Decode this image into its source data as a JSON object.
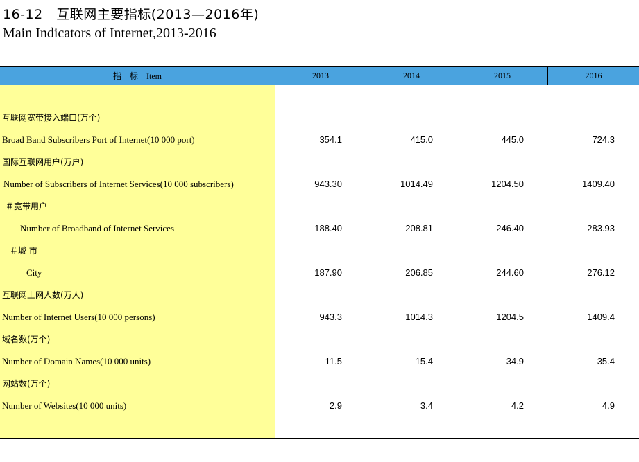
{
  "title_cn": "16-12　互联网主要指标(2013—2016年)",
  "title_en": "Main Indicators of Internet,2013-2016",
  "header": {
    "item": "指　标　Item",
    "years": [
      "2013",
      "2014",
      "2015",
      "2016"
    ]
  },
  "rows": [
    {
      "label": "互联网宽带接入端口(万个)",
      "values": [
        "",
        "",
        "",
        ""
      ]
    },
    {
      "label": "Broad Band Subscribers Port of Internet(10 000 port)",
      "values": [
        "354.1",
        "415.0",
        "445.0",
        "724.3"
      ]
    },
    {
      "label": "国际互联网用户(万户)",
      "values": [
        "",
        "",
        "",
        ""
      ]
    },
    {
      "label": "Number of Subscribers of Internet Services(10 000 subscribers)",
      "values": [
        "943.30",
        "1014.49",
        "1204.50",
        "1409.40"
      ]
    },
    {
      "label": "＃宽带用户",
      "values": [
        "",
        "",
        "",
        ""
      ]
    },
    {
      "label": "Number of Broadband of Internet Services",
      "values": [
        "188.40",
        "208.81",
        "246.40",
        "283.93"
      ]
    },
    {
      "label": "＃城 市",
      "values": [
        "",
        "",
        "",
        ""
      ]
    },
    {
      "label": "City",
      "values": [
        "187.90",
        "206.85",
        "244.60",
        "276.12"
      ]
    },
    {
      "label": "互联网上网人数(万人)",
      "values": [
        "",
        "",
        "",
        ""
      ]
    },
    {
      "label": "Number of Internet Users(10 000 persons)",
      "values": [
        "943.3",
        "1014.3",
        "1204.5",
        "1409.4"
      ]
    },
    {
      "label": "域名数(万个)",
      "values": [
        "",
        "",
        "",
        ""
      ]
    },
    {
      "label": "Number of Domain Names(10 000 units)",
      "values": [
        "11.5",
        "15.4",
        "34.9",
        "35.4"
      ]
    },
    {
      "label": "网站数(万个)",
      "values": [
        "",
        "",
        "",
        ""
      ]
    },
    {
      "label": "Number of Websites(10 000 units)",
      "values": [
        "2.9",
        "3.4",
        "4.2",
        "4.9"
      ]
    }
  ]
}
